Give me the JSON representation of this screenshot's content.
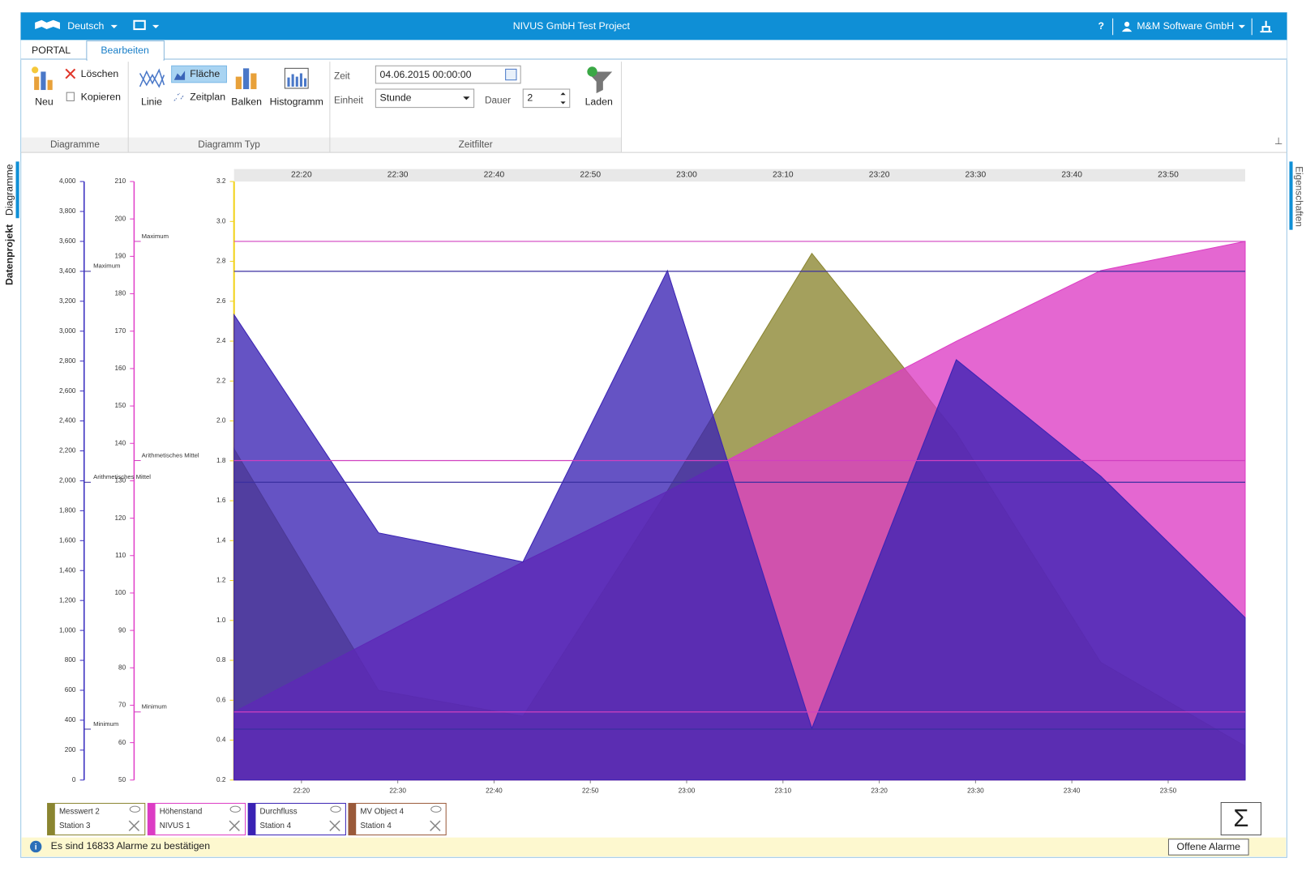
{
  "app": {
    "language": "Deutsch",
    "title": "NIVUS GmbH Test Project",
    "help": "?",
    "user": "M&M Software GmbH"
  },
  "tabs": [
    "PORTAL",
    "Bearbeiten"
  ],
  "ribbon": {
    "diagramme": {
      "label": "Diagramme",
      "neu": "Neu",
      "loeschen": "Löschen",
      "kopieren": "Kopieren"
    },
    "typ": {
      "label": "Diagramm Typ",
      "linie": "Linie",
      "flaeche": "Fläche",
      "zeitplan": "Zeitplan",
      "balken": "Balken",
      "histogramm": "Histogramm"
    },
    "zeitfilter": {
      "label": "Zeitfilter",
      "zeit_label": "Zeit",
      "zeit": "04.06.2015 00:00:00",
      "einheit_label": "Einheit",
      "einheit": "Stunde",
      "dauer_label": "Dauer",
      "dauer": "2",
      "laden": "Laden"
    }
  },
  "side_tabs": {
    "left": [
      "Diagramme",
      "Datenprojekt"
    ],
    "right": [
      "Eigenschaften"
    ]
  },
  "chart_data": {
    "type": "area",
    "x": [
      "22:13",
      "22:28",
      "22:43",
      "22:58",
      "23:13",
      "23:28",
      "23:43",
      "23:58"
    ],
    "xlim": [
      "22:13",
      "23:58"
    ],
    "xticks": [
      "22:20",
      "22:30",
      "22:40",
      "22:50",
      "23:00",
      "23:10",
      "23:20",
      "23:30",
      "23:40",
      "23:50"
    ],
    "ylim": [
      0.2,
      3.2
    ],
    "yticks": [
      0.2,
      0.4,
      0.6,
      0.8,
      {
        "value": 1,
        "label": "1.0"
      },
      1.2,
      1.4,
      1.6,
      1.8,
      {
        "value": 2,
        "label": "2.0"
      },
      2.2,
      2.4,
      2.6,
      2.8,
      {
        "value": 3,
        "label": "3.0"
      },
      3.2
    ],
    "y_color": "#f2d21b",
    "y2lim": [
      50,
      210
    ],
    "y2ticks": [
      50,
      60,
      70,
      80,
      90,
      100,
      110,
      120,
      130,
      140,
      150,
      160,
      170,
      180,
      190,
      200,
      210
    ],
    "y2_color": "#e040c8",
    "y3lim": [
      0,
      4000
    ],
    "y3ticks": [
      0,
      200,
      400,
      600,
      800,
      {
        "value": 1000,
        "label": "1,000"
      },
      {
        "value": 1200,
        "label": "1,200"
      },
      {
        "value": 1400,
        "label": "1,400"
      },
      {
        "value": 1600,
        "label": "1,600"
      },
      {
        "value": 1800,
        "label": "1,800"
      },
      {
        "value": 2000,
        "label": "2,000"
      },
      {
        "value": 2200,
        "label": "2,200"
      },
      {
        "value": 2400,
        "label": "2,400"
      },
      {
        "value": 2600,
        "label": "2,600"
      },
      {
        "value": 2800,
        "label": "2,800"
      },
      {
        "value": 3000,
        "label": "3,000"
      },
      {
        "value": 3200,
        "label": "3,200"
      },
      {
        "value": 3400,
        "label": "3,400"
      },
      {
        "value": 3600,
        "label": "3,600"
      },
      {
        "value": 3800,
        "label": "3,800"
      },
      {
        "value": 4000,
        "label": "4,000"
      }
    ],
    "y3_color": "#3a2fc0",
    "series": [
      {
        "name": "Messwert 2",
        "station": "Station 3",
        "color": "#8a8530",
        "axis": "y",
        "values": [
          1.86,
          0.65,
          0.52,
          1.65,
          2.84,
          1.94,
          0.79,
          0.37
        ]
      },
      {
        "name": "Höhenstand",
        "station": "NIVUS 1",
        "color": "#dc3cc4",
        "axis": "y2",
        "values": [
          68.2,
          88.3,
          108.3,
          127.2,
          147.2,
          167.3,
          186.2,
          194
        ]
      },
      {
        "name": "Durchfluss",
        "station": "Station 4",
        "color": "#3a22b4",
        "axis": "y3",
        "values": [
          3110,
          1652,
          1458,
          3405,
          345,
          2809,
          2031,
          1085
        ]
      },
      {
        "name": "MV Object 4",
        "station": "Station 4",
        "color": "#9a5a3a",
        "axis": "y",
        "values": [
          null,
          null,
          null,
          null,
          null,
          null,
          null,
          null
        ]
      }
    ],
    "reference_lines": [
      {
        "label": "Maximum",
        "axis": "y3",
        "value": 3400,
        "color": "#3a2fa0"
      },
      {
        "label": "Arithmetisches Mittel",
        "axis": "y3",
        "value": 1990,
        "color": "#3a2fa0"
      },
      {
        "label": "Minimum",
        "axis": "y3",
        "value": 340,
        "color": "#3a2fa0"
      },
      {
        "label": "Maximum",
        "axis": "y2",
        "value": 194,
        "color": "#d040c0"
      },
      {
        "label": "Arithmetisches Mittel",
        "axis": "y2",
        "value": 135.4,
        "color": "#d040c0"
      },
      {
        "label": "Minimum",
        "axis": "y2",
        "value": 68.2,
        "color": "#d040c0"
      }
    ]
  },
  "sum_button": "Σ",
  "status": {
    "message": "Es sind 16833 Alarme zu bestätigen",
    "button": "Offene Alarme"
  }
}
